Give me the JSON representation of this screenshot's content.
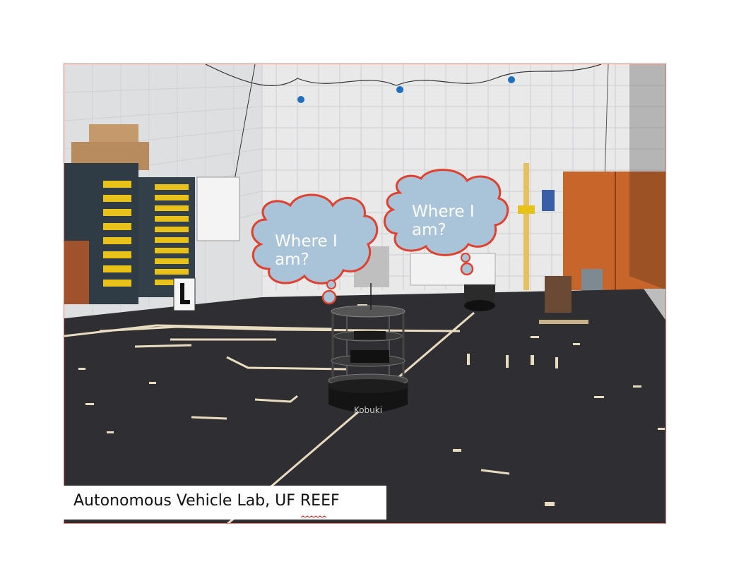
{
  "photo": {
    "subject": "Indoor robotics lab floor with mobile robots"
  },
  "bubbles": [
    {
      "text": "Where I\nam?"
    },
    {
      "text": "Where I\nam?"
    }
  ],
  "robot": {
    "brand": "Kobuki"
  },
  "caption": {
    "text": "Autonomous Vehicle Lab, UF REEF"
  },
  "colors": {
    "frame_border": "#e07a6e",
    "bubble_fill": "#a9c3d9",
    "bubble_stroke": "#e0412f",
    "floor": "#2f2f33",
    "wall": "#ececec",
    "shelf_yellow": "#e8c21b",
    "door": "#c8652a"
  }
}
